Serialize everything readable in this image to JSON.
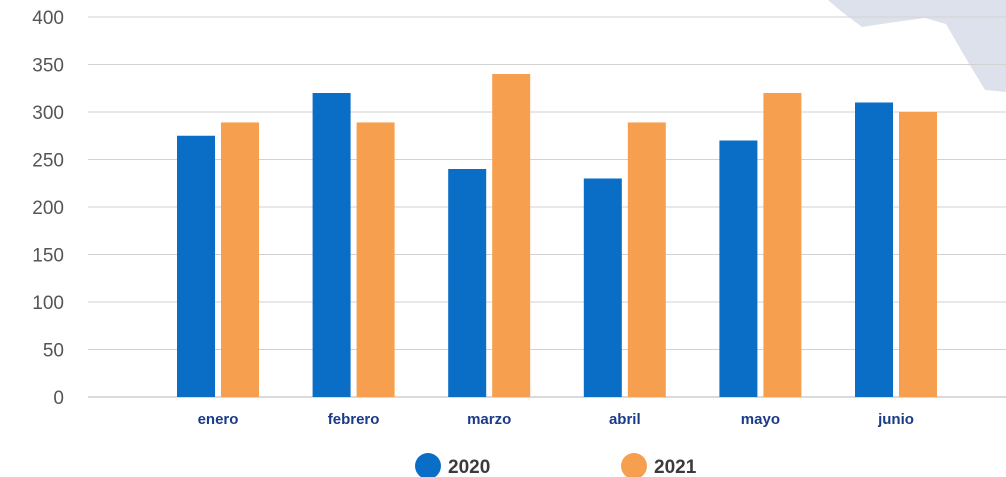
{
  "chart_data": {
    "type": "bar",
    "title": "",
    "xlabel": "",
    "ylabel": "",
    "ylim": [
      0,
      400
    ],
    "yticks": [
      0,
      50,
      100,
      150,
      200,
      250,
      300,
      350,
      400
    ],
    "categories": [
      "enero",
      "febrero",
      "marzo",
      "abril",
      "mayo",
      "junio"
    ],
    "series": [
      {
        "name": "2020",
        "color": "#0a6ec6",
        "values": [
          275,
          320,
          240,
          230,
          270,
          310
        ]
      },
      {
        "name": "2021",
        "color": "#f59f4f",
        "values": [
          289,
          289,
          340,
          289,
          320,
          300
        ]
      }
    ],
    "grid": true,
    "legend_position": "bottom"
  },
  "decoration": {
    "map_shape_color": "#dde1ec"
  }
}
